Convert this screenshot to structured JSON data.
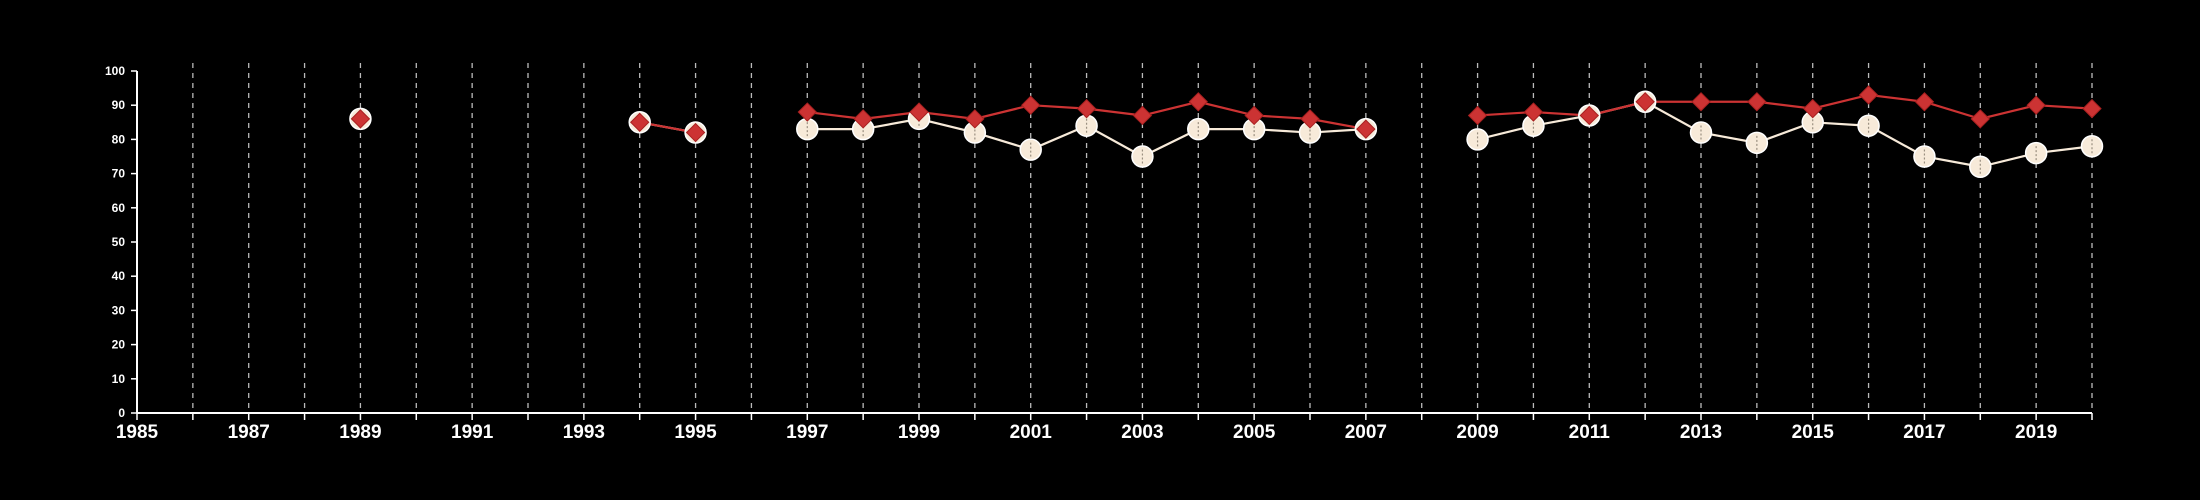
{
  "chart_data": {
    "type": "line",
    "title": "",
    "xlabel": "",
    "ylabel": "",
    "xlim": [
      1985,
      2020
    ],
    "ylim": [
      0,
      100
    ],
    "x_tick_labels": [
      "1985",
      "1987",
      "1989",
      "1991",
      "1993",
      "1995",
      "1997",
      "1999",
      "2001",
      "2003",
      "2005",
      "2007",
      "2009",
      "2011",
      "2013",
      "2015",
      "2017",
      "2019"
    ],
    "y_tick_labels": [
      "0",
      "10",
      "20",
      "30",
      "40",
      "50",
      "60",
      "70",
      "80",
      "90",
      "100"
    ],
    "grid": "vertical dashed lines at each year",
    "legend": "none",
    "colors": {
      "background": "#000000",
      "axis": "#ffffff",
      "grid": "#bbbbbb",
      "series_red": "#cc3333",
      "series_cream": "#f7ead9"
    },
    "series": [
      {
        "marker": "diamond",
        "color": "#cc3333",
        "points": [
          {
            "x": 1989,
            "y": 86
          },
          {
            "x": 1994,
            "y": 85
          },
          {
            "x": 1995,
            "y": 82
          },
          {
            "x": 1997,
            "y": 88
          },
          {
            "x": 1998,
            "y": 86
          },
          {
            "x": 1999,
            "y": 88
          },
          {
            "x": 2000,
            "y": 86
          },
          {
            "x": 2001,
            "y": 90
          },
          {
            "x": 2002,
            "y": 89
          },
          {
            "x": 2003,
            "y": 87
          },
          {
            "x": 2004,
            "y": 91
          },
          {
            "x": 2005,
            "y": 87
          },
          {
            "x": 2006,
            "y": 86
          },
          {
            "x": 2007,
            "y": 83
          },
          {
            "x": 2009,
            "y": 87
          },
          {
            "x": 2010,
            "y": 88
          },
          {
            "x": 2011,
            "y": 87
          },
          {
            "x": 2012,
            "y": 91
          },
          {
            "x": 2013,
            "y": 91
          },
          {
            "x": 2014,
            "y": 91
          },
          {
            "x": 2015,
            "y": 89
          },
          {
            "x": 2016,
            "y": 93
          },
          {
            "x": 2017,
            "y": 91
          },
          {
            "x": 2018,
            "y": 86
          },
          {
            "x": 2019,
            "y": 90
          },
          {
            "x": 2020,
            "y": 89
          }
        ]
      },
      {
        "marker": "circle",
        "color": "#f7ead9",
        "points": [
          {
            "x": 1989,
            "y": 86
          },
          {
            "x": 1994,
            "y": 85
          },
          {
            "x": 1995,
            "y": 82
          },
          {
            "x": 1997,
            "y": 83
          },
          {
            "x": 1998,
            "y": 83
          },
          {
            "x": 1999,
            "y": 86
          },
          {
            "x": 2000,
            "y": 82
          },
          {
            "x": 2001,
            "y": 77
          },
          {
            "x": 2002,
            "y": 84
          },
          {
            "x": 2003,
            "y": 75
          },
          {
            "x": 2004,
            "y": 83
          },
          {
            "x": 2005,
            "y": 83
          },
          {
            "x": 2006,
            "y": 82
          },
          {
            "x": 2007,
            "y": 83
          },
          {
            "x": 2009,
            "y": 80
          },
          {
            "x": 2010,
            "y": 84
          },
          {
            "x": 2011,
            "y": 87
          },
          {
            "x": 2012,
            "y": 91
          },
          {
            "x": 2013,
            "y": 82
          },
          {
            "x": 2014,
            "y": 79
          },
          {
            "x": 2015,
            "y": 85
          },
          {
            "x": 2016,
            "y": 84
          },
          {
            "x": 2017,
            "y": 75
          },
          {
            "x": 2018,
            "y": 72
          },
          {
            "x": 2019,
            "y": 76
          },
          {
            "x": 2020,
            "y": 78
          }
        ]
      }
    ]
  }
}
